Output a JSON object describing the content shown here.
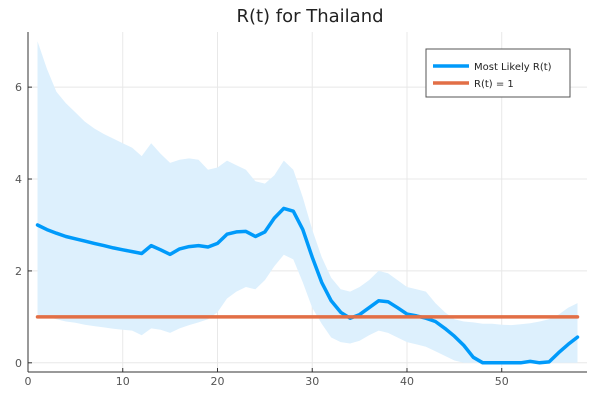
{
  "chart_data": {
    "type": "line",
    "title": "R(t) for Thailand",
    "xlabel": "",
    "ylabel": "",
    "xlim": [
      0,
      59
    ],
    "ylim": [
      -0.2,
      7.2
    ],
    "xticks": [
      0,
      10,
      20,
      30,
      40,
      50
    ],
    "yticks": [
      0,
      2,
      4,
      6
    ],
    "grid": true,
    "legend_position": "top-right",
    "colors": {
      "series": "#009AFA",
      "band": "#DDF0FD",
      "reference": "#E26F46"
    },
    "x": [
      1,
      2,
      3,
      4,
      5,
      6,
      7,
      8,
      9,
      10,
      11,
      12,
      13,
      14,
      15,
      16,
      17,
      18,
      19,
      20,
      21,
      22,
      23,
      24,
      25,
      26,
      27,
      28,
      29,
      30,
      31,
      32,
      33,
      34,
      35,
      36,
      37,
      38,
      39,
      40,
      41,
      42,
      43,
      44,
      45,
      46,
      47,
      48,
      49,
      50,
      51,
      52,
      53,
      54,
      55,
      56,
      57,
      58
    ],
    "series": [
      {
        "name": "Most Likely R(t)",
        "values": [
          3.0,
          2.9,
          2.82,
          2.75,
          2.7,
          2.65,
          2.6,
          2.55,
          2.5,
          2.46,
          2.42,
          2.38,
          2.55,
          2.46,
          2.36,
          2.48,
          2.53,
          2.55,
          2.52,
          2.6,
          2.8,
          2.85,
          2.86,
          2.75,
          2.85,
          3.15,
          3.36,
          3.3,
          2.9,
          2.3,
          1.75,
          1.35,
          1.1,
          0.97,
          1.05,
          1.2,
          1.35,
          1.33,
          1.2,
          1.06,
          1.02,
          0.97,
          0.9,
          0.75,
          0.58,
          0.38,
          0.12,
          0.0,
          0.0,
          0.0,
          0.0,
          0.0,
          0.03,
          0.0,
          0.02,
          0.22,
          0.4,
          0.56
        ],
        "lower": [
          1.05,
          1.0,
          0.95,
          0.9,
          0.87,
          0.83,
          0.8,
          0.77,
          0.74,
          0.72,
          0.7,
          0.6,
          0.75,
          0.72,
          0.65,
          0.75,
          0.82,
          0.88,
          0.95,
          1.1,
          1.4,
          1.55,
          1.65,
          1.6,
          1.8,
          2.1,
          2.35,
          2.25,
          1.75,
          1.2,
          0.85,
          0.55,
          0.45,
          0.42,
          0.48,
          0.6,
          0.7,
          0.65,
          0.55,
          0.45,
          0.4,
          0.35,
          0.25,
          0.15,
          0.05,
          0.0,
          0.0,
          0.0,
          0.0,
          0.0,
          0.0,
          0.0,
          0.0,
          0.0,
          0.0,
          0.0,
          0.0,
          0.0
        ],
        "upper": [
          7.0,
          6.4,
          5.9,
          5.65,
          5.45,
          5.25,
          5.1,
          4.98,
          4.88,
          4.78,
          4.68,
          4.5,
          4.78,
          4.55,
          4.35,
          4.42,
          4.45,
          4.42,
          4.2,
          4.25,
          4.4,
          4.3,
          4.2,
          3.95,
          3.9,
          4.08,
          4.4,
          4.2,
          3.6,
          2.9,
          2.3,
          1.85,
          1.6,
          1.55,
          1.65,
          1.8,
          2.0,
          1.95,
          1.8,
          1.65,
          1.6,
          1.55,
          1.3,
          1.1,
          0.95,
          0.9,
          0.88,
          0.85,
          0.85,
          0.83,
          0.82,
          0.84,
          0.86,
          0.9,
          0.95,
          1.05,
          1.2,
          1.3
        ]
      },
      {
        "name": "R(t) = 1",
        "values": [
          1,
          1,
          1,
          1,
          1,
          1,
          1,
          1,
          1,
          1,
          1,
          1,
          1,
          1,
          1,
          1,
          1,
          1,
          1,
          1,
          1,
          1,
          1,
          1,
          1,
          1,
          1,
          1,
          1,
          1,
          1,
          1,
          1,
          1,
          1,
          1,
          1,
          1,
          1,
          1,
          1,
          1,
          1,
          1,
          1,
          1,
          1,
          1,
          1,
          1,
          1,
          1,
          1,
          1,
          1,
          1,
          1,
          1
        ]
      }
    ]
  }
}
